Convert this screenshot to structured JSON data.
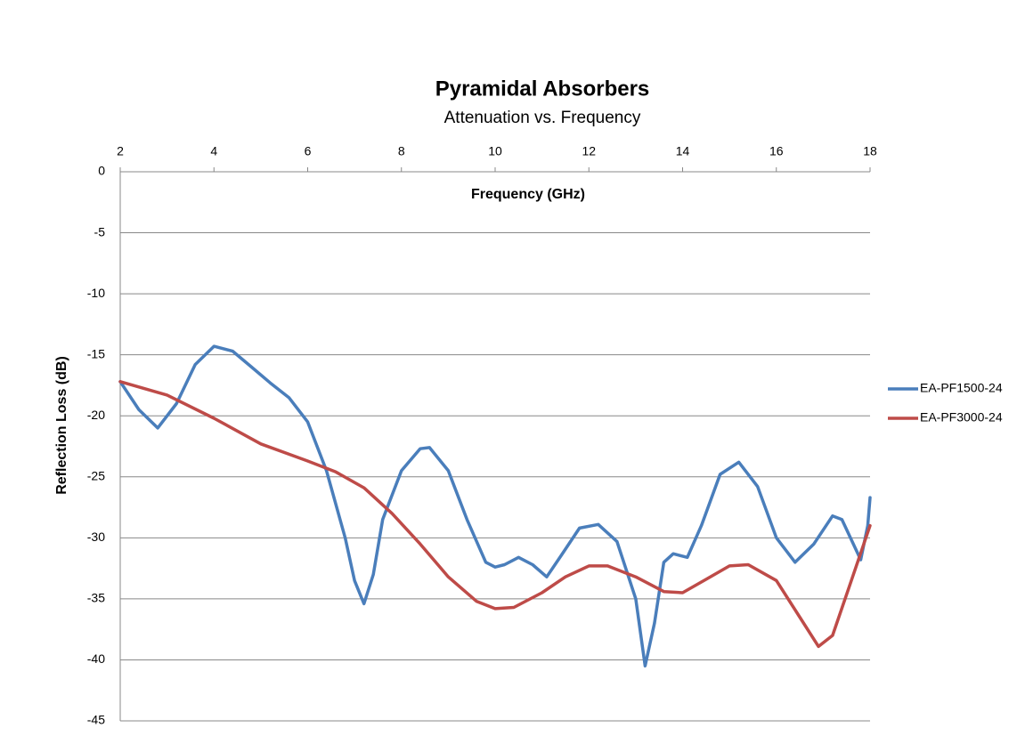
{
  "chart_data": {
    "type": "line",
    "title": "Pyramidal Absorbers",
    "subtitle": "Attenuation vs. Frequency",
    "x_label": "Frequency (GHz)",
    "y_label": "Reflection Loss (dB)",
    "xlim": [
      2,
      18
    ],
    "xticks": [
      2,
      4,
      6,
      8,
      10,
      12,
      14,
      16,
      18
    ],
    "ylim": [
      -45,
      0
    ],
    "yticks": [
      0,
      -5,
      -10,
      -15,
      -20,
      -25,
      -30,
      -35,
      -40,
      -45
    ],
    "grid": true,
    "legend": "right",
    "series": [
      {
        "name": "EA-PF1500-24",
        "color": "#4a7ebb",
        "x": [
          2,
          2.4,
          2.8,
          3.2,
          3.6,
          4.0,
          4.4,
          4.8,
          5.2,
          5.6,
          6.0,
          6.4,
          6.8,
          7.0,
          7.2,
          7.4,
          7.6,
          8.0,
          8.4,
          8.6,
          9.0,
          9.4,
          9.8,
          10.0,
          10.2,
          10.5,
          10.8,
          11.1,
          11.4,
          11.8,
          12.2,
          12.6,
          13.0,
          13.2,
          13.4,
          13.6,
          13.8,
          14.1,
          14.4,
          14.8,
          15.2,
          15.6,
          16.0,
          16.4,
          16.8,
          17.2,
          17.4,
          17.8,
          17.95,
          18.0
        ],
        "values": [
          -17.2,
          -19.5,
          -21.0,
          -19.0,
          -15.8,
          -14.3,
          -14.7,
          -16.0,
          -17.3,
          -18.5,
          -20.5,
          -24.5,
          -30,
          -33.5,
          -35.4,
          -33,
          -28.5,
          -24.5,
          -22.7,
          -22.6,
          -24.5,
          -28.5,
          -32,
          -32.4,
          -32.2,
          -31.6,
          -32.2,
          -33.2,
          -31.5,
          -29.2,
          -28.9,
          -30.3,
          -35,
          -40.5,
          -37,
          -32,
          -31.3,
          -31.6,
          -29,
          -24.8,
          -23.8,
          -25.8,
          -30,
          -32,
          -30.5,
          -28.2,
          -28.5,
          -31.8,
          -29,
          -26.7
        ]
      },
      {
        "name": "EA-PF3000-24",
        "color": "#be4b48",
        "x": [
          2,
          3,
          4,
          5,
          6,
          6.6,
          7.2,
          7.8,
          8.4,
          9.0,
          9.6,
          10.0,
          10.4,
          11.0,
          11.5,
          12.0,
          12.4,
          13.0,
          13.6,
          14.0,
          14.5,
          15.0,
          15.4,
          16.0,
          16.5,
          16.9,
          17.2,
          17.6,
          18.0
        ],
        "values": [
          -17.2,
          -18.3,
          -20.2,
          -22.3,
          -23.7,
          -24.6,
          -25.9,
          -28,
          -30.5,
          -33.2,
          -35.2,
          -35.8,
          -35.7,
          -34.5,
          -33.2,
          -32.3,
          -32.3,
          -33.2,
          -34.4,
          -34.5,
          -33.4,
          -32.3,
          -32.2,
          -33.5,
          -36.5,
          -38.9,
          -38,
          -33.5,
          -29.0
        ]
      }
    ]
  }
}
